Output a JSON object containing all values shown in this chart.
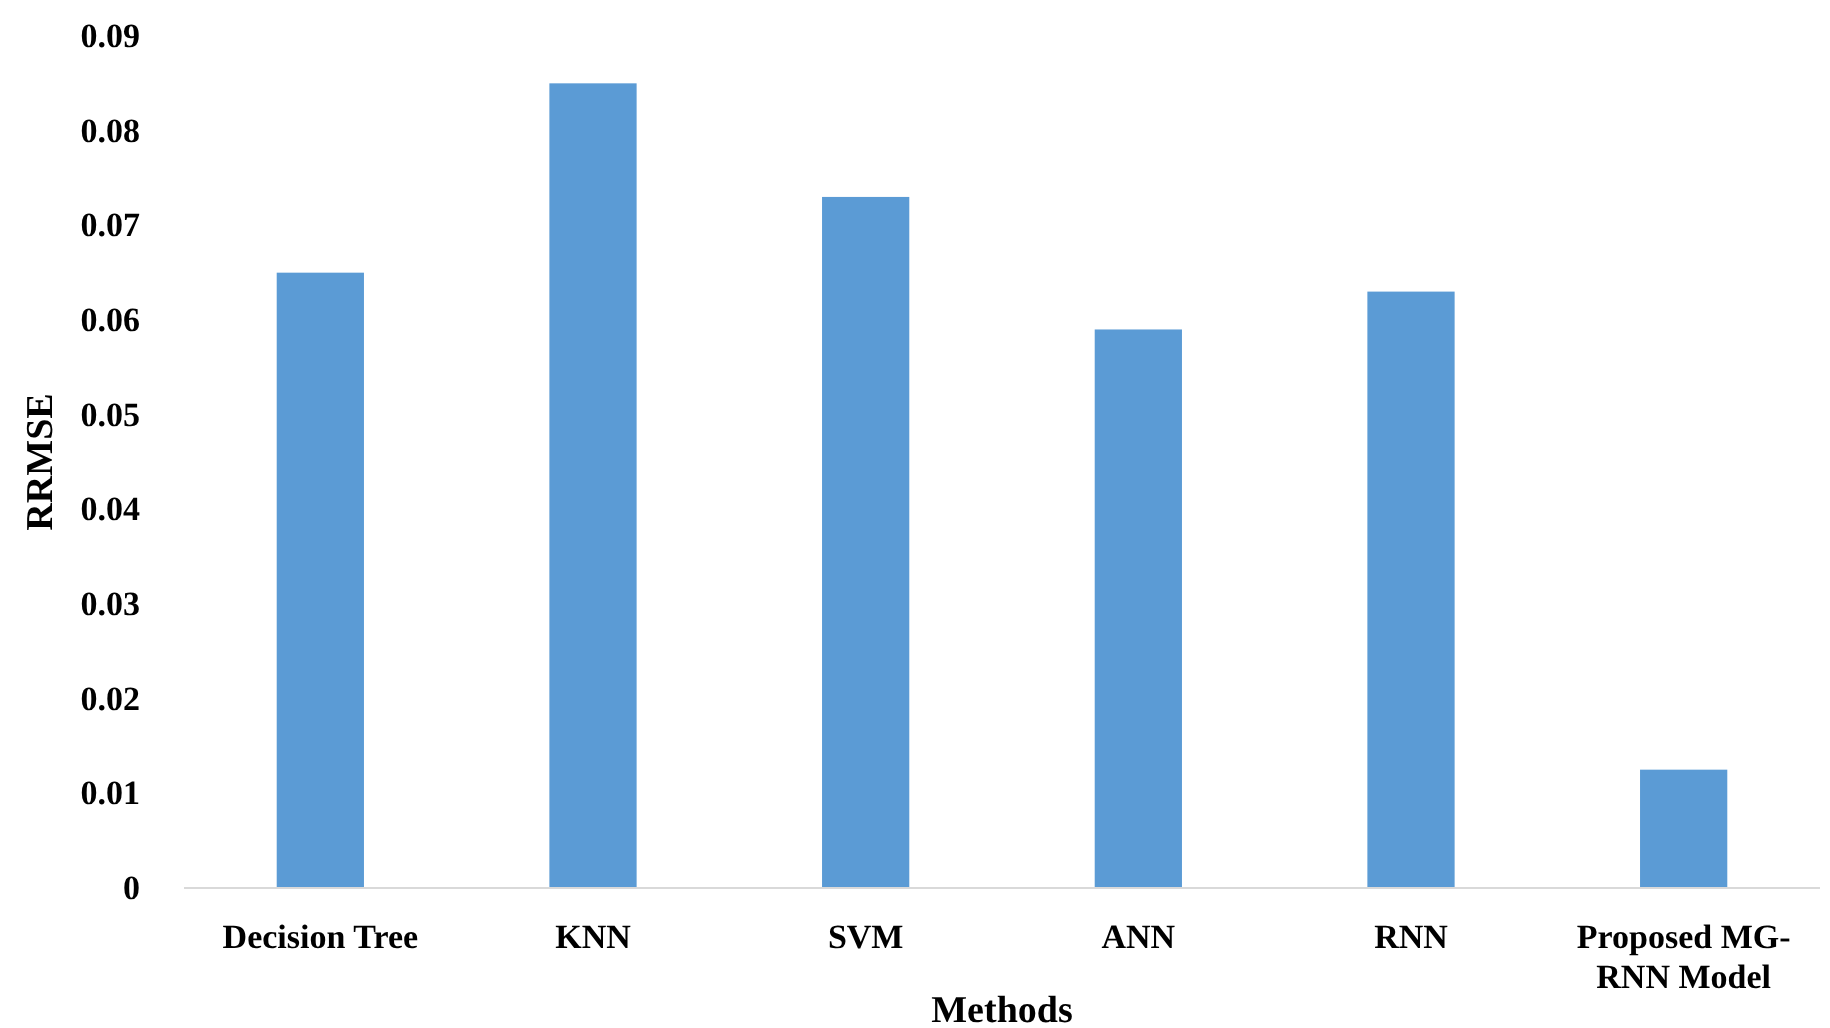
{
  "chart_data": {
    "type": "bar",
    "xlabel": "Methods",
    "ylabel": "RRMSE",
    "categories": [
      "Decision Tree",
      "KNN",
      "SVM",
      "ANN",
      "RNN",
      "Proposed MG-RNN Model"
    ],
    "values": [
      0.065,
      0.085,
      0.073,
      0.059,
      0.063,
      0.0125
    ],
    "color": "#5b9bd5",
    "ylim": [
      0,
      0.09
    ],
    "yticks": [
      0,
      0.01,
      0.02,
      0.03,
      0.04,
      0.05,
      0.06,
      0.07,
      0.08,
      0.09
    ],
    "grid": false
  }
}
